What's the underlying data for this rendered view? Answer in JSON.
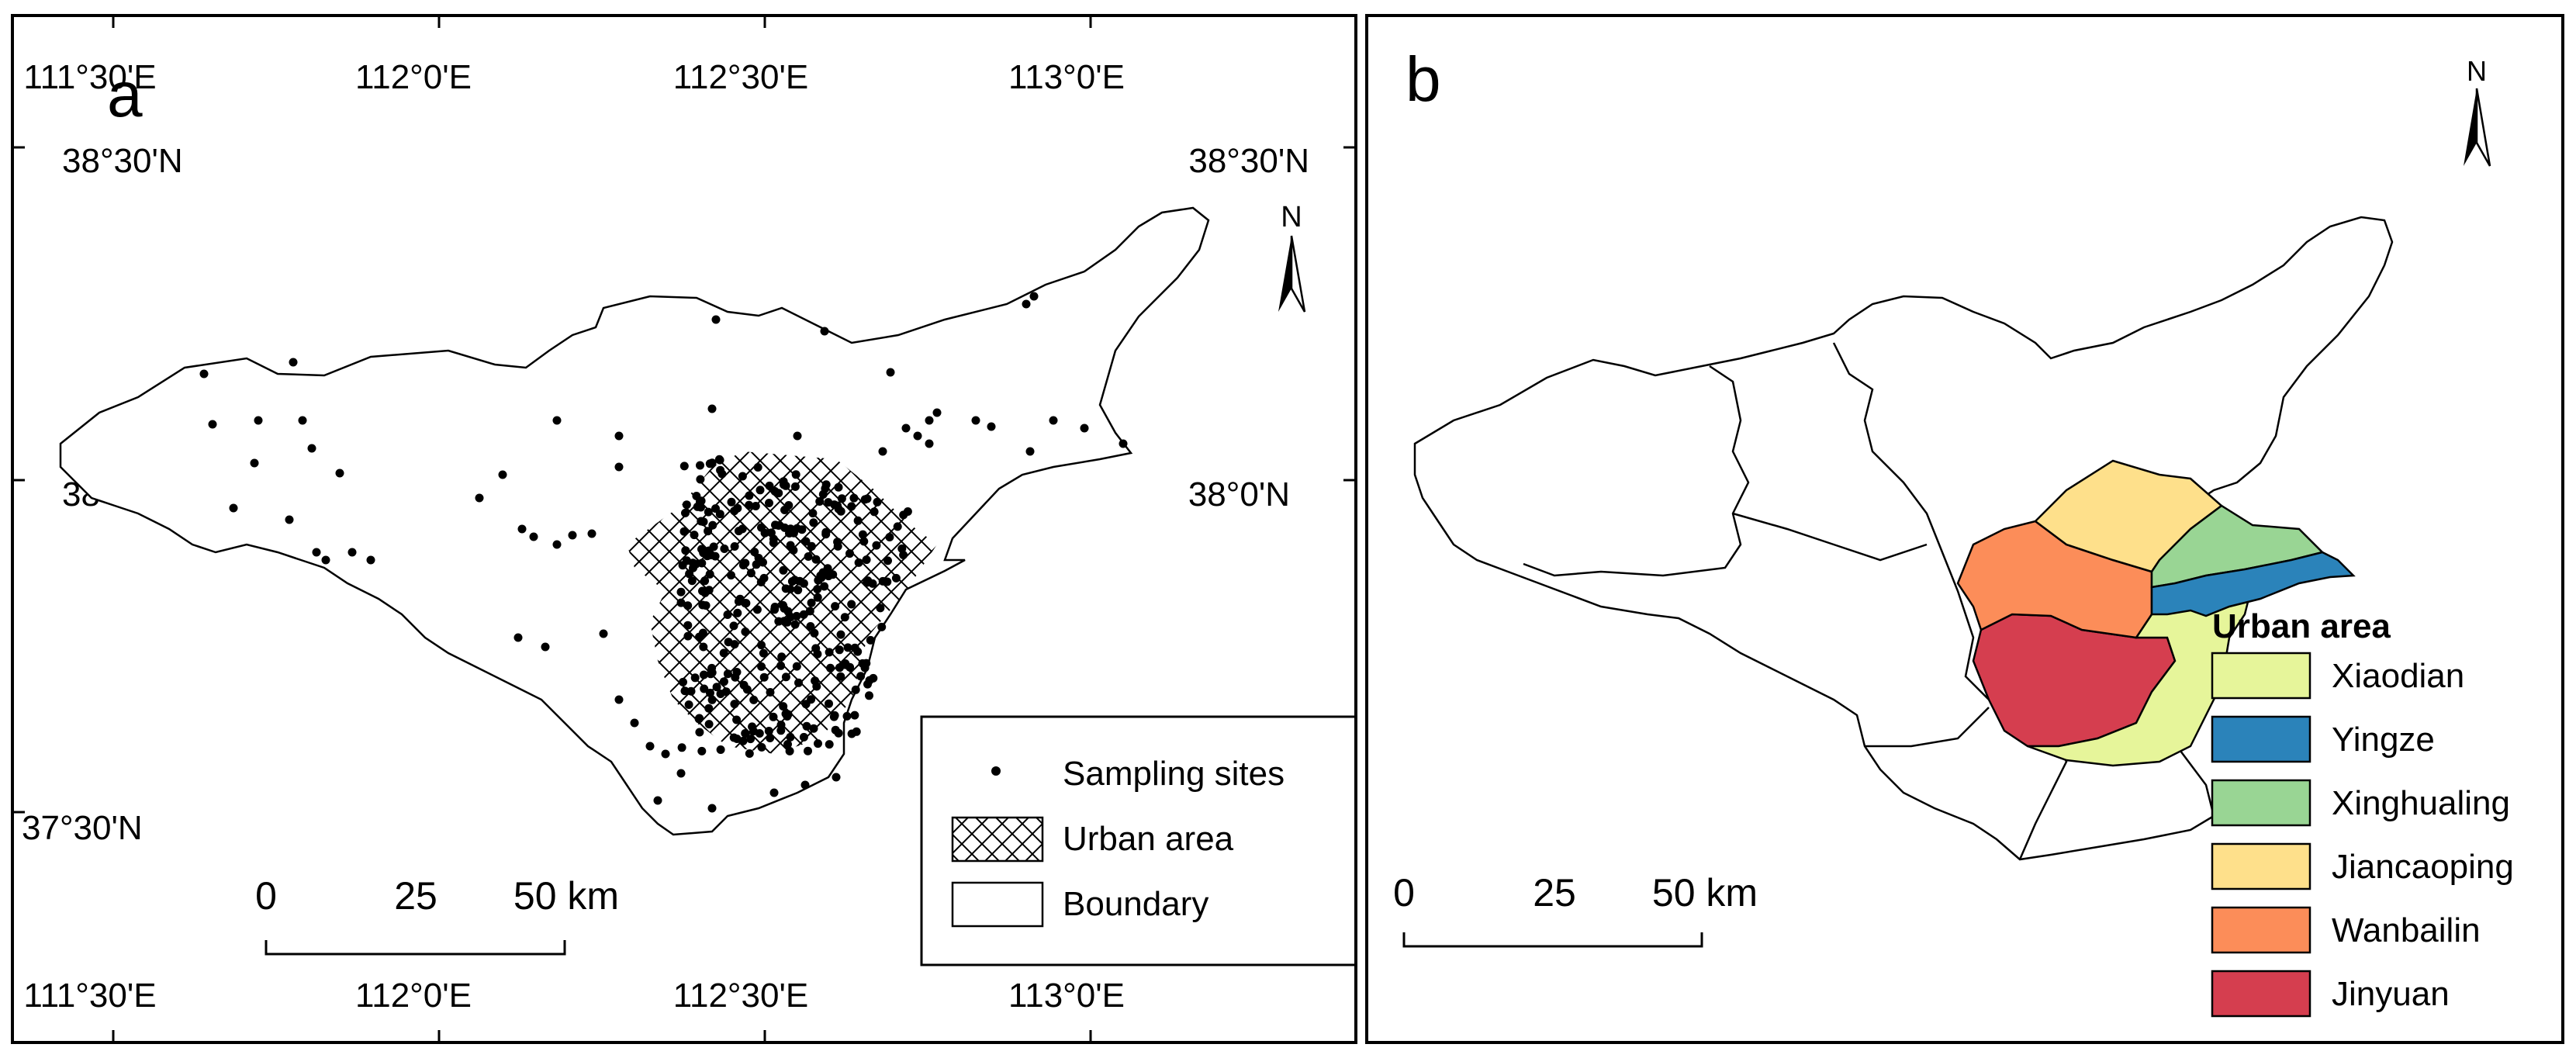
{
  "panel_a": {
    "letter": "a",
    "top_lon_labels": [
      "111°30'E",
      "112°0'E",
      "112°30'E",
      "113°0'E"
    ],
    "bottom_lon_labels": [
      "111°30'E",
      "112°0'E",
      "112°30'E",
      "113°0'E"
    ],
    "left_lat_labels": [
      "38°30'N",
      "38°0'N",
      "37°30'N"
    ],
    "right_lat_labels": [
      "38°30'N",
      "38°0'N"
    ],
    "north_label": "N",
    "scale": {
      "labels": [
        "0",
        "25",
        "50 km"
      ]
    },
    "legend": {
      "sampling_sites": "Sampling sites",
      "urban_area": "Urban area",
      "boundary": "Boundary"
    }
  },
  "panel_b": {
    "letter": "b",
    "north_label": "N",
    "scale": {
      "labels": [
        "0",
        "25",
        "50 km"
      ]
    },
    "legend": {
      "title": "Urban area",
      "items": [
        {
          "label": "Xiaodian",
          "color": "#e6f59a"
        },
        {
          "label": "Yingze",
          "color": "#2b83ba"
        },
        {
          "label": "Xinghualing",
          "color": "#99d594"
        },
        {
          "label": "Jiancaoping",
          "color": "#fee08b"
        },
        {
          "label": "Wanbailin",
          "color": "#fc8d59"
        },
        {
          "label": "Jinyuan",
          "color": "#d53e4f"
        }
      ]
    }
  },
  "colors": {
    "boundary": "#000000",
    "background": "#ffffff"
  }
}
